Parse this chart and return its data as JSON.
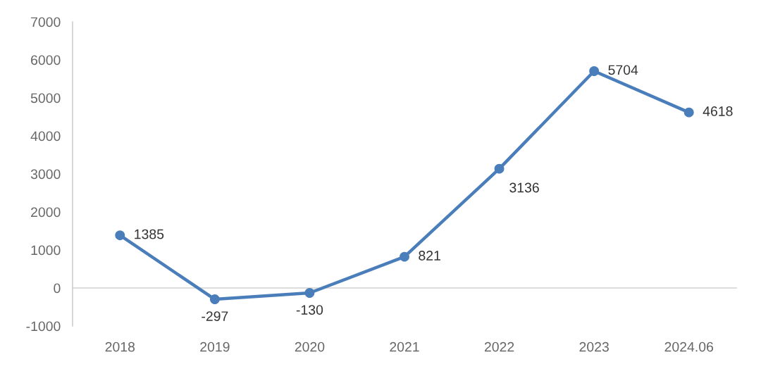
{
  "chart_data": {
    "type": "line",
    "categories": [
      "2018",
      "2019",
      "2020",
      "2021",
      "2022",
      "2023",
      "2024.06"
    ],
    "series": [
      {
        "color": "#4a7ebb",
        "values": [
          1385,
          -297,
          -130,
          821,
          3136,
          5704,
          4618
        ]
      }
    ],
    "ylim": [
      -1000,
      7000
    ],
    "yticks": [
      -1000,
      0,
      1000,
      2000,
      3000,
      4000,
      5000,
      6000,
      7000
    ],
    "data_labels": true,
    "marker": "circle",
    "line_style": "solid"
  }
}
